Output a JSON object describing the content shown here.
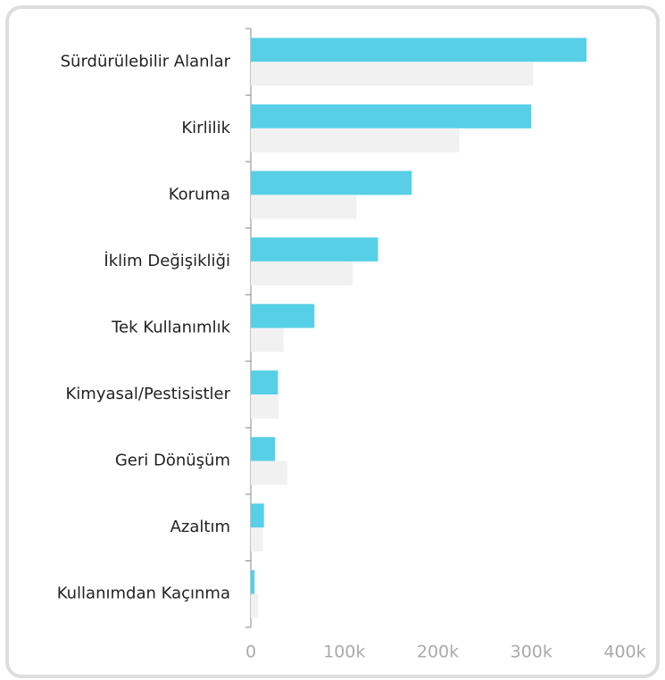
{
  "chart_data": {
    "type": "hbar",
    "categories": [
      "Sürdürülebilir Alanlar",
      "Kirlilik",
      "Koruma",
      "İklim Değişikliği",
      "Tek Kullanımlık",
      "Kimyasal/Pestisistler",
      "Geri Dönüşüm",
      "Azaltım",
      "Kullanımdan Kaçınma"
    ],
    "series": [
      {
        "color": "#57cfe6",
        "values": [
          359000,
          300000,
          172000,
          136000,
          68000,
          29000,
          26000,
          14000,
          4000
        ]
      },
      {
        "color": "#f1f1f1",
        "values": [
          302000,
          223000,
          113000,
          109000,
          35000,
          30000,
          39000,
          13000,
          8000
        ]
      }
    ],
    "xlim": [
      0,
      400000
    ],
    "xticks": [
      0,
      {
        "value": 100000,
        "label": "100k"
      },
      {
        "value": 200000,
        "label": "200k"
      },
      {
        "value": 300000,
        "label": "300k"
      },
      {
        "value": 400000,
        "label": "400k"
      }
    ]
  }
}
